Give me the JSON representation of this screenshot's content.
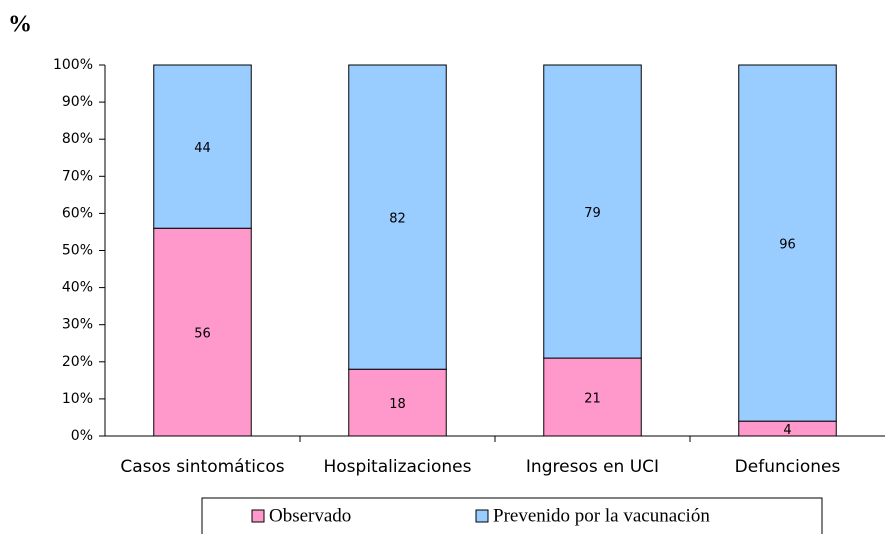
{
  "chart_data": {
    "type": "bar",
    "stacked": true,
    "title": "%",
    "categories": [
      "Casos sintomáticos",
      "Hospitalizaciones",
      "Ingresos en UCI",
      "Defunciones"
    ],
    "series": [
      {
        "name": "Observado",
        "color": "#ff99cc",
        "values": [
          56,
          18,
          21,
          4
        ]
      },
      {
        "name": "Prevenido por la vacunación",
        "color": "#99ccff",
        "values": [
          44,
          82,
          79,
          96
        ]
      }
    ],
    "ylim": [
      0,
      100
    ],
    "yticks": [
      {
        "value": 0,
        "label": "0%"
      },
      {
        "value": 10,
        "label": "10%"
      },
      {
        "value": 20,
        "label": "20%"
      },
      {
        "value": 30,
        "label": "30%"
      },
      {
        "value": 40,
        "label": "40%"
      },
      {
        "value": 50,
        "label": "50%"
      },
      {
        "value": 60,
        "label": "60%"
      },
      {
        "value": 70,
        "label": "70%"
      },
      {
        "value": 80,
        "label": "80%"
      },
      {
        "value": 90,
        "label": "90%"
      },
      {
        "value": 100,
        "label": "100%"
      }
    ],
    "legend": "bottom"
  }
}
